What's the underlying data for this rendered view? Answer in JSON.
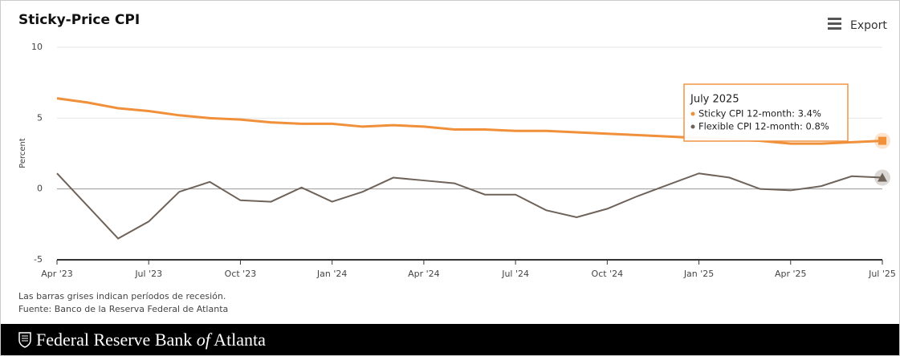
{
  "chart_data": {
    "type": "line",
    "title": "Sticky-Price CPI",
    "y_label": "Percent",
    "categories": [
      "Apr '23",
      null,
      null,
      "Jul '23",
      null,
      null,
      "Oct '23",
      null,
      null,
      "Jan '24",
      null,
      null,
      "Apr '24",
      null,
      null,
      "Jul '24",
      null,
      null,
      "Oct '24",
      null,
      null,
      "Jan '25",
      null,
      null,
      "Apr '25",
      null,
      null,
      "Jul '25"
    ],
    "series": [
      {
        "name": "Sticky CPI 12-month",
        "color": "#f0903a",
        "values": [
          6.4,
          6.1,
          5.7,
          5.5,
          5.2,
          5.0,
          4.9,
          4.7,
          4.6,
          4.6,
          4.4,
          4.5,
          4.4,
          4.2,
          4.2,
          4.1,
          4.1,
          4.0,
          3.9,
          3.8,
          3.7,
          3.6,
          3.5,
          3.4,
          3.2,
          3.2,
          3.3,
          3.4
        ]
      },
      {
        "name": "Flexible CPI 12-month",
        "color": "#6e6259",
        "values": [
          1.1,
          -1.2,
          -3.5,
          -2.3,
          -0.2,
          0.5,
          -0.8,
          -0.9,
          0.1,
          -0.9,
          -0.2,
          0.8,
          0.6,
          0.4,
          -0.4,
          -0.4,
          -1.5,
          -2.0,
          -1.4,
          -0.5,
          0.3,
          1.1,
          0.8,
          0.0,
          -0.1,
          0.2,
          0.9,
          0.8
        ]
      }
    ],
    "ylim": [
      -5,
      10
    ],
    "yticks": [
      10,
      5,
      0,
      -5
    ],
    "grid": true,
    "tooltip": {
      "title": "July 2025",
      "lines": [
        "Sticky CPI 12-month: 3.4%",
        "Flexible CPI 12-month: 0.8%"
      ]
    },
    "notes": [
      "Las barras grises indican períodos de recesión.",
      "Fuente: Banco de la Reserva Federal de Atlanta"
    ]
  },
  "ui": {
    "export": "Export",
    "footer": [
      "Federal Reserve Bank ",
      "of",
      " Atlanta"
    ]
  }
}
